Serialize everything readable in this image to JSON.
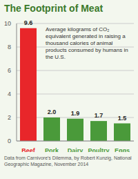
{
  "chart_data": {
    "type": "bar",
    "title": "The Footprint of Meat",
    "annotation": "Average kilograms of CO₂ equivalent generated in raising a thousand calories of animal products consumed by humans in the U.S.",
    "source": "Data from Carnivore's Dilemma, by Robert Kunzig, National Geographic Magazine, November 2014",
    "categories": [
      "Beef",
      "Pork",
      "Dairy",
      "Poultry",
      "Eggs"
    ],
    "values": [
      9.6,
      2.0,
      1.9,
      1.7,
      1.5
    ],
    "value_labels": [
      "9.6",
      "2.0",
      "1.9",
      "1.7",
      "1.5"
    ],
    "colors": [
      "#e8262a",
      "#4a9a3a",
      "#4a9a3a",
      "#4a9a3a",
      "#4a9a3a"
    ],
    "ylim": [
      0,
      10
    ],
    "yticks": [
      0,
      2,
      4,
      6,
      8,
      10
    ],
    "grid": true,
    "data_labels": true
  }
}
